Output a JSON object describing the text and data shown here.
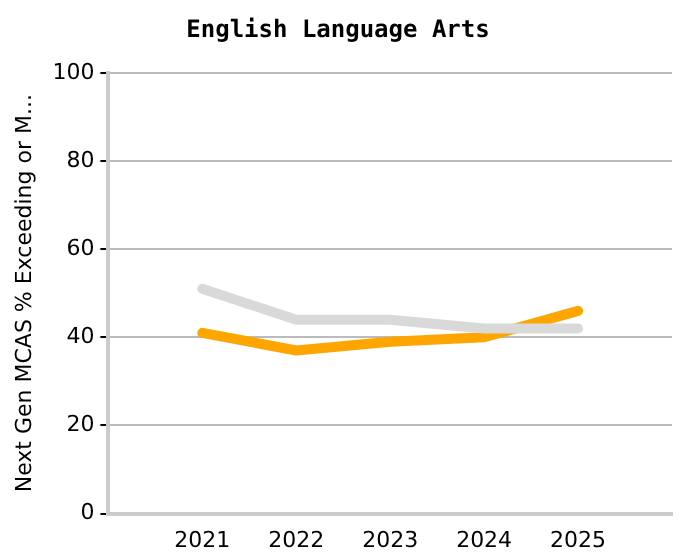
{
  "chart_data": {
    "type": "line",
    "title": "English Language Arts",
    "ylabel": "Next Gen MCAS % Exceeding or M...",
    "categories": [
      null,
      "2021",
      "2022",
      "2023",
      "2024",
      "2025",
      null
    ],
    "series": [
      {
        "color": "#d9d9d9",
        "values": [
          null,
          51,
          44,
          44,
          42,
          42,
          null
        ]
      },
      {
        "color": "#ffa500",
        "values": [
          null,
          41,
          37,
          39,
          40,
          46,
          null
        ]
      }
    ],
    "ylim": [
      0,
      100
    ],
    "yticks": [
      0,
      20,
      40,
      60,
      80,
      100
    ],
    "grid": "y",
    "line_style": "solid",
    "marker": "none",
    "legend": false
  }
}
